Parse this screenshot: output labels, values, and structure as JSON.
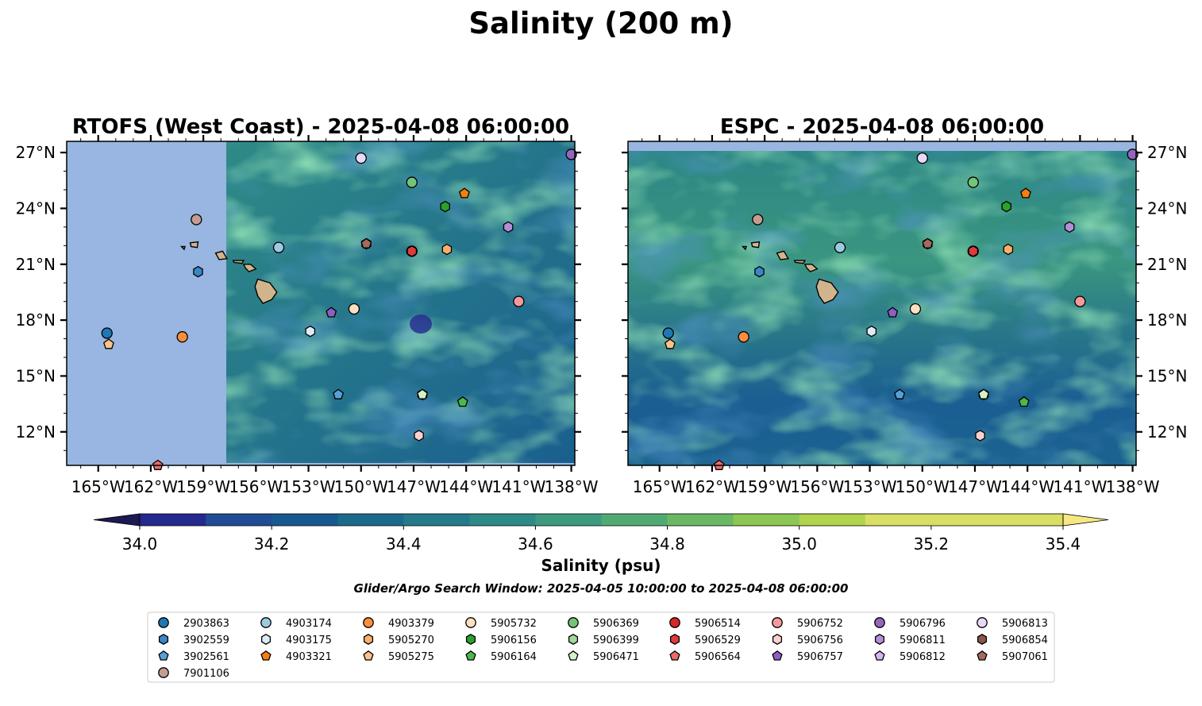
{
  "title": "Salinity (200 m)",
  "panels": [
    {
      "title": "RTOFS (West Coast) - 2025-04-08 06:00:00"
    },
    {
      "title": "ESPC - 2025-04-08 06:00:00"
    }
  ],
  "colorbar": {
    "label": "Salinity (psu)",
    "ticks": [
      "34.0",
      "34.2",
      "34.4",
      "34.6",
      "34.8",
      "35.0",
      "35.2",
      "35.4"
    ]
  },
  "search_window": "Glider/Argo Search Window: 2025-04-05 10:00:00 to 2025-04-08 06:00:00",
  "legend_entries": [
    {
      "label": "2903863",
      "color": "#1f77b4",
      "marker": "circle"
    },
    {
      "label": "3902559",
      "color": "#3a86c8",
      "marker": "hexagon"
    },
    {
      "label": "3902561",
      "color": "#5a9fd4",
      "marker": "pentagon"
    },
    {
      "label": "4903174",
      "color": "#9ecae1",
      "marker": "circle"
    },
    {
      "label": "4903175",
      "color": "#deebf7",
      "marker": "hexagon"
    },
    {
      "label": "4903321",
      "color": "#f57f0e",
      "marker": "pentagon"
    },
    {
      "label": "4903379",
      "color": "#fd8d3c",
      "marker": "circle"
    },
    {
      "label": "5905270",
      "color": "#fdae6b",
      "marker": "hexagon"
    },
    {
      "label": "5905275",
      "color": "#fdc28c",
      "marker": "pentagon"
    },
    {
      "label": "5905732",
      "color": "#fee0c0",
      "marker": "circle"
    },
    {
      "label": "5906156",
      "color": "#2ca02c",
      "marker": "hexagon"
    },
    {
      "label": "5906164",
      "color": "#4cb84c",
      "marker": "pentagon"
    },
    {
      "label": "5906369",
      "color": "#74c476",
      "marker": "circle"
    },
    {
      "label": "5906399",
      "color": "#a1d99b",
      "marker": "hexagon"
    },
    {
      "label": "5906471",
      "color": "#d4f2c8",
      "marker": "pentagon"
    },
    {
      "label": "5906514",
      "color": "#d62728",
      "marker": "circle"
    },
    {
      "label": "5906529",
      "color": "#e03b3c",
      "marker": "hexagon"
    },
    {
      "label": "5906564",
      "color": "#ea6a6a",
      "marker": "pentagon"
    },
    {
      "label": "5906752",
      "color": "#f49a9a",
      "marker": "circle"
    },
    {
      "label": "5906756",
      "color": "#fcd0d0",
      "marker": "hexagon"
    },
    {
      "label": "5906757",
      "color": "#8e5fc1",
      "marker": "pentagon"
    },
    {
      "label": "5906796",
      "color": "#9467bd",
      "marker": "circle"
    },
    {
      "label": "5906811",
      "color": "#b48fd9",
      "marker": "hexagon"
    },
    {
      "label": "5906812",
      "color": "#d3b6ef",
      "marker": "pentagon"
    },
    {
      "label": "5906813",
      "color": "#ead8fb",
      "marker": "circle"
    },
    {
      "label": "5906854",
      "color": "#8c564b",
      "marker": "hexagon"
    },
    {
      "label": "5907061",
      "color": "#a36a5d",
      "marker": "pentagon"
    },
    {
      "label": "7901106",
      "color": "#c49c94",
      "marker": "circle"
    }
  ],
  "chart_data": {
    "type": "heatmap",
    "variable": "Salinity",
    "units": "psu",
    "depth_m": 200,
    "colorbar_range": [
      34.0,
      35.4
    ],
    "colorbar_step": 0.1,
    "colormap_colors": [
      "#1b1a53",
      "#24298e",
      "#1f4c94",
      "#17598f",
      "#1b6a8c",
      "#257a8a",
      "#2e8a86",
      "#3d9a7f",
      "#52aa73",
      "#6bb864",
      "#8cc653",
      "#b0d44c",
      "#d8df63",
      "#f7e782"
    ],
    "xlim": [
      -166.8,
      -137.8
    ],
    "ylim": [
      10.2,
      27.6
    ],
    "x_ticks": [
      -165,
      -162,
      -159,
      -156,
      -153,
      -150,
      -147,
      -144,
      -141,
      -138
    ],
    "x_tick_labels": [
      "165°W",
      "162°W",
      "159°W",
      "156°W",
      "153°W",
      "150°W",
      "147°W",
      "144°W",
      "141°W",
      "138°W"
    ],
    "y_ticks": [
      12,
      15,
      18,
      21,
      24,
      27
    ],
    "y_tick_labels": [
      "12°N",
      "15°N",
      "18°N",
      "21°N",
      "24°N",
      "27°N"
    ],
    "rtofs_domain_west_edge_lon": -157.7,
    "observations": [
      {
        "id": "2903863",
        "lon": -164.5,
        "lat": 17.3
      },
      {
        "id": "3902559",
        "lon": -159.3,
        "lat": 20.6
      },
      {
        "id": "3902561",
        "lon": -151.3,
        "lat": 14.0
      },
      {
        "id": "4903174",
        "lon": -154.7,
        "lat": 21.9
      },
      {
        "id": "4903175",
        "lon": -152.9,
        "lat": 17.4
      },
      {
        "id": "4903321",
        "lon": -144.1,
        "lat": 24.8
      },
      {
        "id": "4903379",
        "lon": -160.2,
        "lat": 17.1
      },
      {
        "id": "5905270",
        "lon": -145.1,
        "lat": 21.8
      },
      {
        "id": "5905275",
        "lon": -164.4,
        "lat": 16.7
      },
      {
        "id": "5905732",
        "lon": -150.4,
        "lat": 18.6
      },
      {
        "id": "5906156",
        "lon": -145.2,
        "lat": 24.1
      },
      {
        "id": "5906164",
        "lon": -144.2,
        "lat": 13.6
      },
      {
        "id": "5906369",
        "lon": -147.1,
        "lat": 25.4
      },
      {
        "id": "5906399",
        "lon": -146.5,
        "lat": 14.0
      },
      {
        "id": "5906471",
        "lon": -146.5,
        "lat": 14.0
      },
      {
        "id": "5906514",
        "lon": -147.1,
        "lat": 21.7
      },
      {
        "id": "5906529",
        "lon": -147.1,
        "lat": 21.7
      },
      {
        "id": "5906564",
        "lon": -161.6,
        "lat": 10.2
      },
      {
        "id": "5906752",
        "lon": -141.0,
        "lat": 19.0
      },
      {
        "id": "5906756",
        "lon": -146.7,
        "lat": 11.8
      },
      {
        "id": "5906757",
        "lon": -151.7,
        "lat": 18.4
      },
      {
        "id": "5906796",
        "lon": -138.0,
        "lat": 26.9
      },
      {
        "id": "5906811",
        "lon": -141.6,
        "lat": 23.0
      },
      {
        "id": "5906812",
        "lon": -150.0,
        "lat": 26.7
      },
      {
        "id": "5906813",
        "lon": -150.0,
        "lat": 26.7
      },
      {
        "id": "5906854",
        "lon": -149.7,
        "lat": 22.1
      },
      {
        "id": "5907061",
        "lon": -149.7,
        "lat": 22.1
      },
      {
        "id": "7901106",
        "lon": -159.4,
        "lat": 23.4
      }
    ]
  }
}
